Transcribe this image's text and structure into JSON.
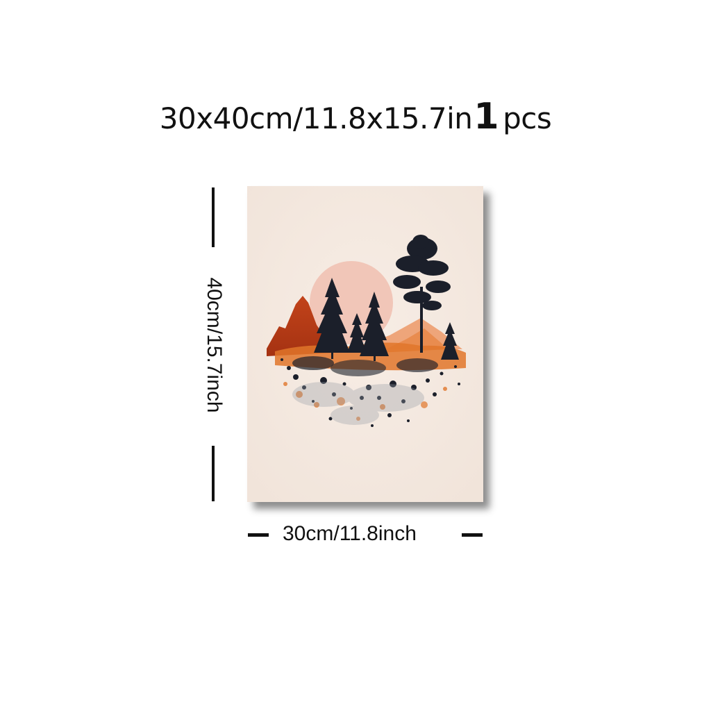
{
  "header": {
    "size_text": "30x40cm/11.8x15.7in",
    "quantity": "1",
    "quantity_unit": "pcs"
  },
  "dimensions": {
    "height_label": "40cm/15.7inch",
    "width_label": "30cm/11.8inch"
  },
  "colors": {
    "canvas": "#f4e8df",
    "sun": "#f1c6b8",
    "mountain_dark": "#b83a16",
    "mountain_light": "#e88a4a",
    "tree": "#1b1f2a",
    "splash_orange": "#e0752a"
  }
}
